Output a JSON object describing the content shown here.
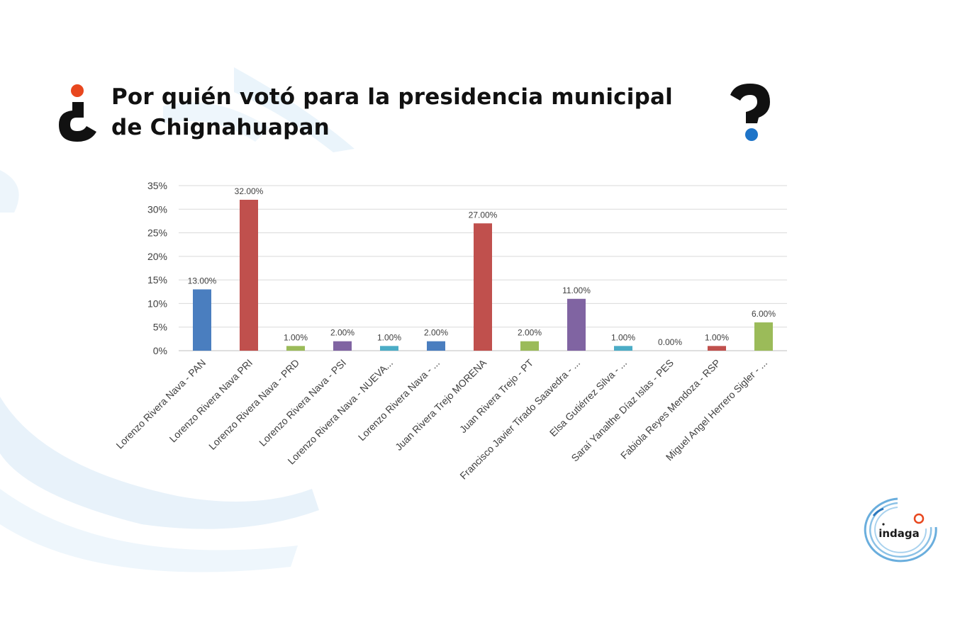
{
  "title": "Por quién votó para la presidencia municipal de Chignahuapan",
  "logo": {
    "text": "indaga"
  },
  "icons": {
    "left": "inverted-question-mark-icon",
    "right": "question-mark-icon"
  },
  "colors": {
    "blue": "#4a7ebf",
    "red": "#c0504d",
    "green": "#9bbb59",
    "purple": "#8064a2",
    "teal": "#4bacc6",
    "accent_orange": "#e8471e",
    "accent_blue": "#1e74c8"
  },
  "chart_data": {
    "type": "bar",
    "title": "Por quién votó para la presidencia municipal de Chignahuapan",
    "xlabel": "",
    "ylabel": "",
    "ylim": [
      0,
      35
    ],
    "yticks": [
      "0%",
      "5%",
      "10%",
      "15%",
      "20%",
      "25%",
      "30%",
      "35%"
    ],
    "grid": true,
    "categories": [
      "Lorenzo Rivera Nava - PAN",
      "Lorenzo Rivera Nava PRI",
      "Lorenzo Rivera Nava - PRD",
      "Lorenzo Rivera Nava - PSI",
      "Lorenzo Rivera Nava - NUEVA...",
      "Lorenzo Rivera Nava - ...",
      "Juan Rivera Trejo MORENA",
      "Juan Rivera Trejo - PT",
      "Francisco Javier Tirado Saavedra - ...",
      "Elsa Gutiérrez Silva - ...",
      "Saraí Yanalthe Díaz Islas - PES",
      "Fabiola Reyes Mendoza - RSP",
      "Miguel Angel Herrero Sigler - ..."
    ],
    "values": [
      13,
      32,
      1,
      2,
      1,
      2,
      27,
      2,
      11,
      1,
      0,
      1,
      6
    ],
    "labels": [
      "13.00%",
      "32.00%",
      "1.00%",
      "2.00%",
      "1.00%",
      "2.00%",
      "27.00%",
      "2.00%",
      "11.00%",
      "1.00%",
      "0.00%",
      "1.00%",
      "6.00%"
    ],
    "bar_colors": [
      "#4a7ebf",
      "#c0504d",
      "#9bbb59",
      "#8064a2",
      "#4bacc6",
      "#4a7ebf",
      "#c0504d",
      "#9bbb59",
      "#8064a2",
      "#4bacc6",
      "#f79646",
      "#c0504d",
      "#9bbb59"
    ]
  }
}
